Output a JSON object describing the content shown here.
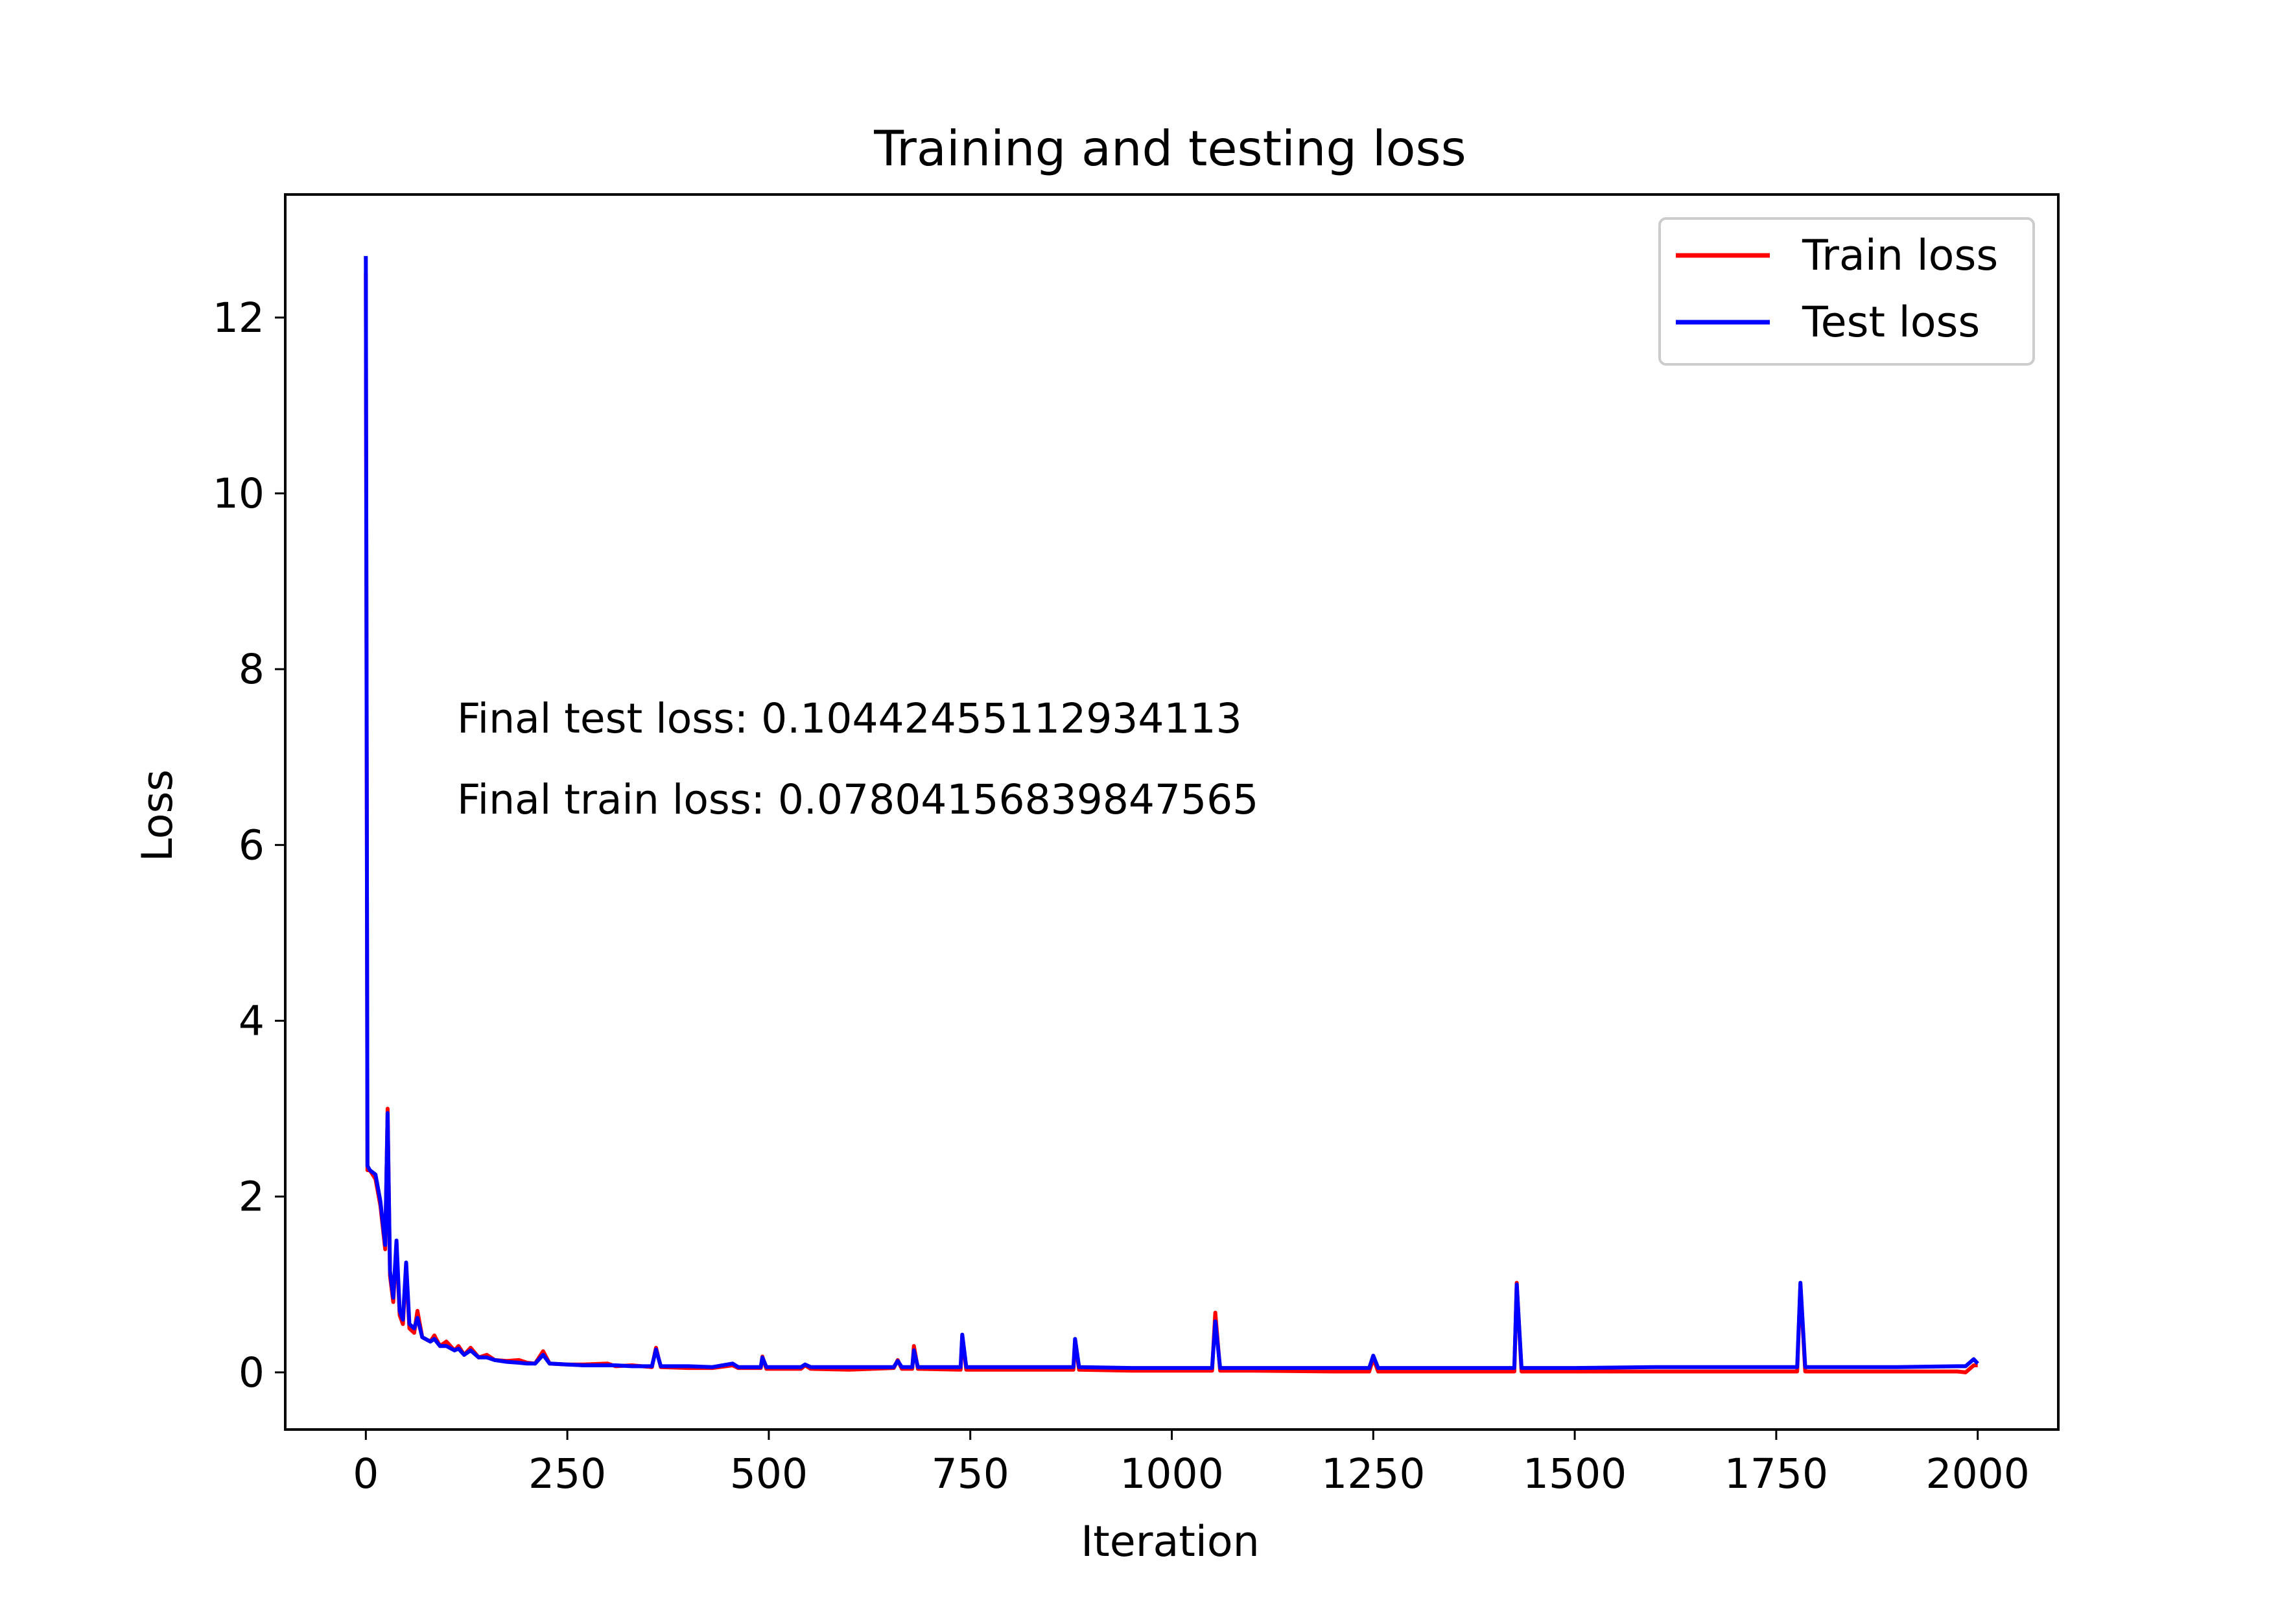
{
  "chart_data": {
    "type": "line",
    "title": "Training and testing loss",
    "xlabel": "Iteration",
    "ylabel": "Loss",
    "xlim": [
      -100,
      2100
    ],
    "ylim": [
      -0.65,
      13.4
    ],
    "xticks": [
      0,
      250,
      500,
      750,
      1000,
      1250,
      1500,
      1750,
      2000
    ],
    "yticks": [
      0,
      2,
      4,
      6,
      8,
      10,
      12
    ],
    "grid": false,
    "legend_position": "top-right",
    "annotations": [
      {
        "text": "Final test loss: 0.10442455112934113",
        "x": 115,
        "y": 7.3
      },
      {
        "text": "Final train loss: 0.07804156839847565",
        "x": 115,
        "y": 6.37
      }
    ],
    "series": [
      {
        "name": "Train loss",
        "color": "#ff0000",
        "points": [
          [
            0,
            12.5
          ],
          [
            2,
            2.3
          ],
          [
            5,
            2.3
          ],
          [
            12,
            2.2
          ],
          [
            18,
            1.9
          ],
          [
            24,
            1.4
          ],
          [
            27,
            3.0
          ],
          [
            30,
            1.1
          ],
          [
            34,
            0.8
          ],
          [
            38,
            1.45
          ],
          [
            42,
            0.65
          ],
          [
            46,
            0.55
          ],
          [
            50,
            1.2
          ],
          [
            54,
            0.5
          ],
          [
            60,
            0.45
          ],
          [
            64,
            0.7
          ],
          [
            70,
            0.4
          ],
          [
            80,
            0.35
          ],
          [
            85,
            0.42
          ],
          [
            92,
            0.3
          ],
          [
            100,
            0.35
          ],
          [
            110,
            0.25
          ],
          [
            115,
            0.3
          ],
          [
            122,
            0.2
          ],
          [
            130,
            0.28
          ],
          [
            140,
            0.17
          ],
          [
            150,
            0.2
          ],
          [
            160,
            0.14
          ],
          [
            175,
            0.13
          ],
          [
            190,
            0.14
          ],
          [
            200,
            0.11
          ],
          [
            210,
            0.1
          ],
          [
            220,
            0.24
          ],
          [
            228,
            0.1
          ],
          [
            250,
            0.09
          ],
          [
            270,
            0.09
          ],
          [
            300,
            0.1
          ],
          [
            310,
            0.07
          ],
          [
            330,
            0.08
          ],
          [
            355,
            0.06
          ],
          [
            360,
            0.28
          ],
          [
            366,
            0.06
          ],
          [
            400,
            0.05
          ],
          [
            430,
            0.05
          ],
          [
            455,
            0.08
          ],
          [
            462,
            0.05
          ],
          [
            490,
            0.05
          ],
          [
            492,
            0.18
          ],
          [
            497,
            0.04
          ],
          [
            540,
            0.04
          ],
          [
            545,
            0.08
          ],
          [
            552,
            0.04
          ],
          [
            600,
            0.03
          ],
          [
            655,
            0.05
          ],
          [
            660,
            0.14
          ],
          [
            665,
            0.04
          ],
          [
            678,
            0.04
          ],
          [
            680,
            0.3
          ],
          [
            685,
            0.04
          ],
          [
            738,
            0.03
          ],
          [
            740,
            0.42
          ],
          [
            745,
            0.03
          ],
          [
            800,
            0.03
          ],
          [
            878,
            0.03
          ],
          [
            880,
            0.35
          ],
          [
            885,
            0.03
          ],
          [
            950,
            0.02
          ],
          [
            1050,
            0.02
          ],
          [
            1054,
            0.68
          ],
          [
            1060,
            0.02
          ],
          [
            1100,
            0.02
          ],
          [
            1200,
            0.01
          ],
          [
            1245,
            0.01
          ],
          [
            1250,
            0.16
          ],
          [
            1256,
            0.01
          ],
          [
            1300,
            0.01
          ],
          [
            1400,
            0.01
          ],
          [
            1425,
            0.01
          ],
          [
            1428,
            1.02
          ],
          [
            1434,
            0.01
          ],
          [
            1500,
            0.01
          ],
          [
            1600,
            0.01
          ],
          [
            1700,
            0.01
          ],
          [
            1776,
            0.01
          ],
          [
            1780,
            1.0
          ],
          [
            1786,
            0.01
          ],
          [
            1850,
            0.01
          ],
          [
            1900,
            0.01
          ],
          [
            1975,
            0.01
          ],
          [
            1985,
            0.0
          ],
          [
            1995,
            0.08
          ],
          [
            2000,
            0.08
          ]
        ]
      },
      {
        "name": "Test loss",
        "color": "#0000ff",
        "points": [
          [
            0,
            12.7
          ],
          [
            2,
            2.35
          ],
          [
            5,
            2.3
          ],
          [
            12,
            2.25
          ],
          [
            18,
            1.95
          ],
          [
            24,
            1.45
          ],
          [
            27,
            2.95
          ],
          [
            30,
            1.15
          ],
          [
            34,
            0.85
          ],
          [
            38,
            1.5
          ],
          [
            42,
            0.7
          ],
          [
            46,
            0.6
          ],
          [
            50,
            1.25
          ],
          [
            54,
            0.55
          ],
          [
            60,
            0.5
          ],
          [
            64,
            0.62
          ],
          [
            70,
            0.4
          ],
          [
            80,
            0.35
          ],
          [
            85,
            0.38
          ],
          [
            92,
            0.3
          ],
          [
            100,
            0.3
          ],
          [
            110,
            0.25
          ],
          [
            115,
            0.27
          ],
          [
            122,
            0.2
          ],
          [
            130,
            0.25
          ],
          [
            140,
            0.17
          ],
          [
            150,
            0.17
          ],
          [
            160,
            0.14
          ],
          [
            175,
            0.12
          ],
          [
            190,
            0.11
          ],
          [
            200,
            0.1
          ],
          [
            210,
            0.1
          ],
          [
            220,
            0.2
          ],
          [
            228,
            0.1
          ],
          [
            250,
            0.09
          ],
          [
            270,
            0.08
          ],
          [
            300,
            0.08
          ],
          [
            310,
            0.08
          ],
          [
            330,
            0.07
          ],
          [
            355,
            0.07
          ],
          [
            360,
            0.26
          ],
          [
            366,
            0.07
          ],
          [
            400,
            0.07
          ],
          [
            430,
            0.06
          ],
          [
            455,
            0.1
          ],
          [
            462,
            0.06
          ],
          [
            490,
            0.06
          ],
          [
            492,
            0.17
          ],
          [
            497,
            0.06
          ],
          [
            540,
            0.06
          ],
          [
            545,
            0.09
          ],
          [
            552,
            0.06
          ],
          [
            600,
            0.06
          ],
          [
            655,
            0.06
          ],
          [
            660,
            0.13
          ],
          [
            665,
            0.06
          ],
          [
            678,
            0.06
          ],
          [
            680,
            0.25
          ],
          [
            685,
            0.06
          ],
          [
            738,
            0.06
          ],
          [
            740,
            0.43
          ],
          [
            745,
            0.06
          ],
          [
            800,
            0.06
          ],
          [
            878,
            0.06
          ],
          [
            880,
            0.38
          ],
          [
            885,
            0.06
          ],
          [
            950,
            0.05
          ],
          [
            1050,
            0.05
          ],
          [
            1054,
            0.58
          ],
          [
            1060,
            0.05
          ],
          [
            1100,
            0.05
          ],
          [
            1200,
            0.05
          ],
          [
            1245,
            0.05
          ],
          [
            1250,
            0.19
          ],
          [
            1256,
            0.05
          ],
          [
            1300,
            0.05
          ],
          [
            1400,
            0.05
          ],
          [
            1425,
            0.05
          ],
          [
            1428,
            1.0
          ],
          [
            1434,
            0.05
          ],
          [
            1500,
            0.05
          ],
          [
            1600,
            0.06
          ],
          [
            1700,
            0.06
          ],
          [
            1776,
            0.06
          ],
          [
            1780,
            1.02
          ],
          [
            1786,
            0.06
          ],
          [
            1850,
            0.06
          ],
          [
            1900,
            0.06
          ],
          [
            1975,
            0.07
          ],
          [
            1985,
            0.07
          ],
          [
            1995,
            0.15
          ],
          [
            2000,
            0.1
          ]
        ]
      }
    ]
  }
}
